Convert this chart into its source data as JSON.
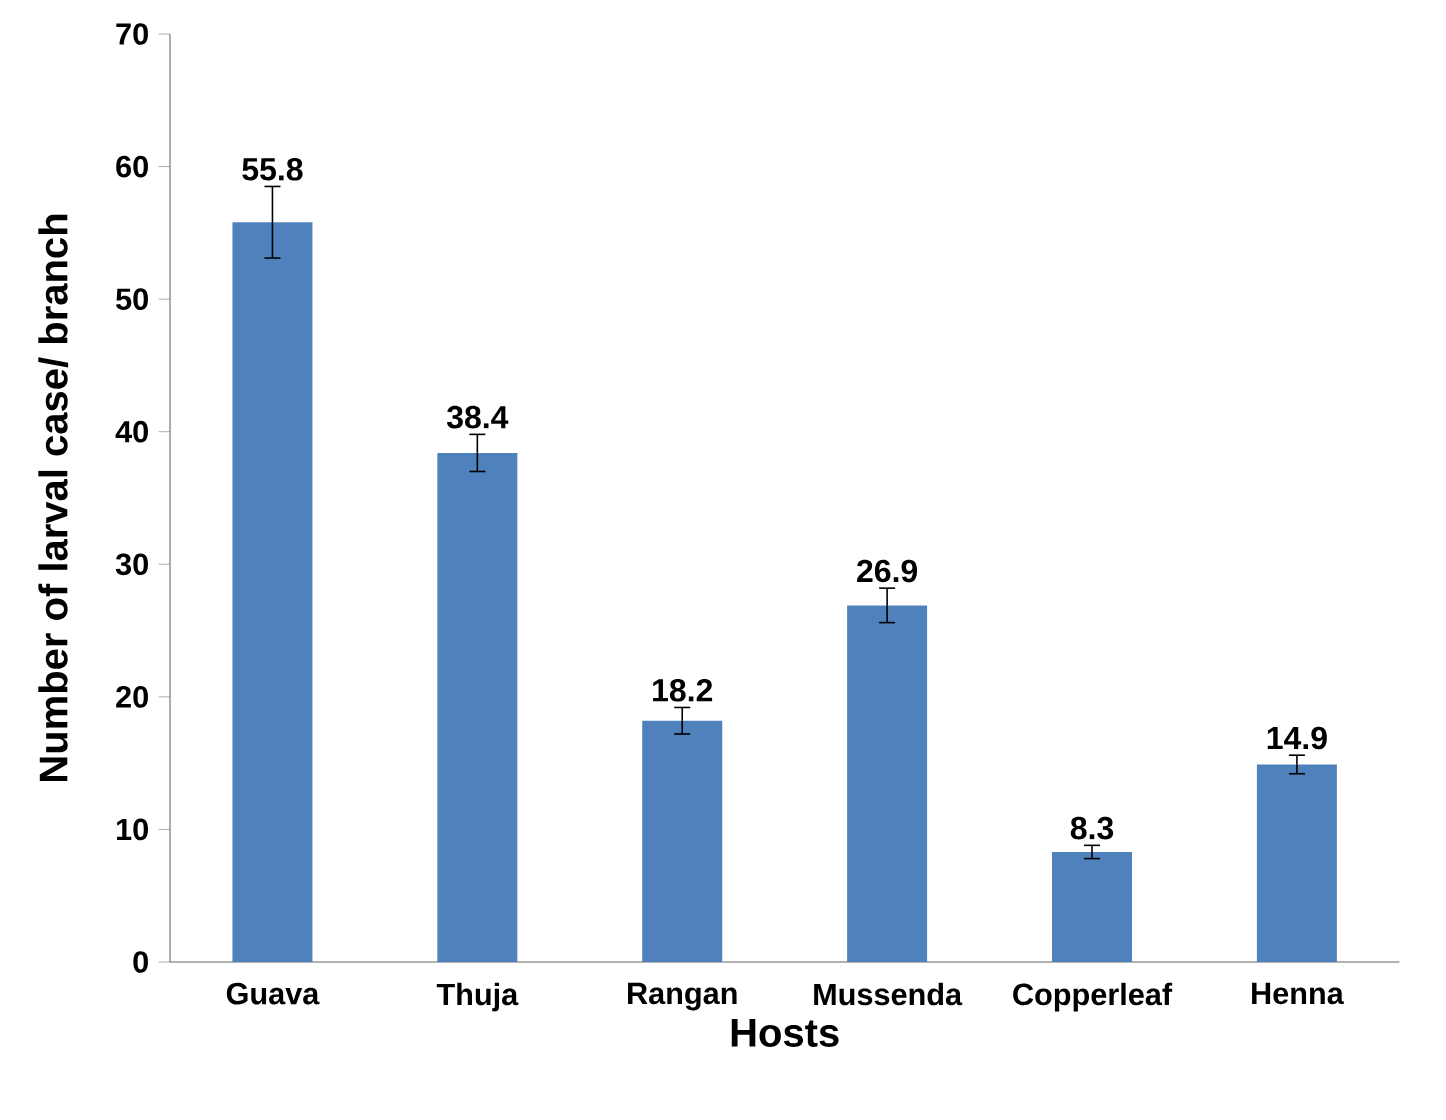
{
  "chart_data": {
    "type": "bar",
    "xlabel": "Hosts",
    "ylabel": "Number of larval case/ branch",
    "categories": [
      "Guava",
      "Thuja",
      "Rangan",
      "Mussenda",
      "Copperleaf",
      "Henna"
    ],
    "values": [
      55.8,
      38.4,
      18.2,
      26.9,
      8.3,
      14.9
    ],
    "errors": [
      2.7,
      1.4,
      1.0,
      1.3,
      0.5,
      0.7
    ],
    "color": "#4f81bd",
    "data_labels": true,
    "grid": false,
    "ylim": [
      0,
      70
    ],
    "yticks": [
      0,
      10,
      20,
      30,
      40,
      50,
      60,
      70
    ]
  }
}
